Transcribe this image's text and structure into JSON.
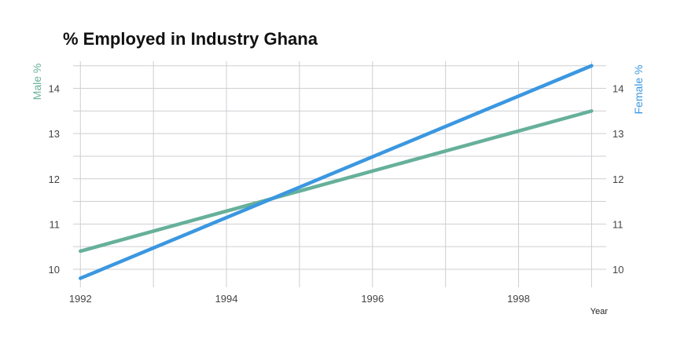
{
  "chart_data": {
    "type": "line",
    "title": "% Employed in Industry Ghana",
    "xlabel": "Year",
    "ylabel_left": "Male %",
    "ylabel_right": "Female %",
    "x": [
      1992,
      1999
    ],
    "xticks": [
      "1992",
      "1994",
      "1996",
      "1998"
    ],
    "yticks": [
      "10",
      "11",
      "12",
      "13",
      "14"
    ],
    "xlim": [
      1991.9,
      1999.2
    ],
    "ylim": [
      9.6,
      14.6
    ],
    "grid": true,
    "series": [
      {
        "name": "Male %",
        "axis": "left",
        "color": "#66b09a",
        "values": [
          10.4,
          13.5
        ]
      },
      {
        "name": "Female %",
        "axis": "right",
        "color": "#3b97e0",
        "values": [
          9.8,
          14.5
        ]
      }
    ]
  }
}
